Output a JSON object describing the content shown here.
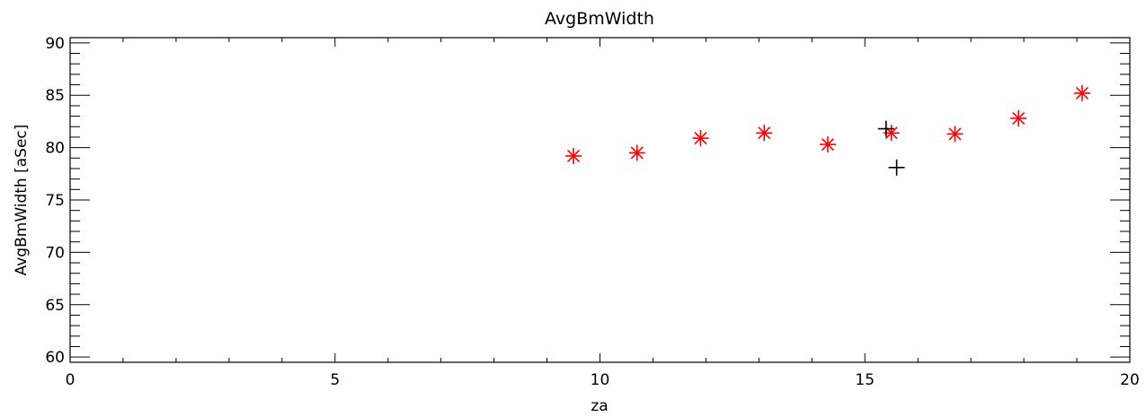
{
  "chart_data": {
    "type": "scatter",
    "title": "AvgBmWidth",
    "xlabel": "za",
    "ylabel": "AvgBmWidth [aSec]",
    "xlim": [
      0,
      20
    ],
    "ylim": [
      59.5,
      90.5
    ],
    "x_ticks": [
      "0",
      "5",
      "10",
      "15",
      "20"
    ],
    "y_ticks": [
      "60",
      "65",
      "70",
      "75",
      "80",
      "85",
      "90"
    ],
    "grid": false,
    "series": [
      {
        "marker": "asterisk",
        "color": "#ff0000",
        "points": [
          {
            "x": 9.5,
            "y": 79.2
          },
          {
            "x": 10.7,
            "y": 79.5
          },
          {
            "x": 11.9,
            "y": 80.9
          },
          {
            "x": 13.1,
            "y": 81.4
          },
          {
            "x": 14.3,
            "y": 80.3
          },
          {
            "x": 15.5,
            "y": 81.4
          },
          {
            "x": 16.7,
            "y": 81.3
          },
          {
            "x": 17.9,
            "y": 82.8
          },
          {
            "x": 19.1,
            "y": 85.2
          }
        ]
      },
      {
        "marker": "plus",
        "color": "#000000",
        "points": [
          {
            "x": 15.4,
            "y": 81.8
          },
          {
            "x": 15.6,
            "y": 78.1
          }
        ]
      }
    ]
  }
}
